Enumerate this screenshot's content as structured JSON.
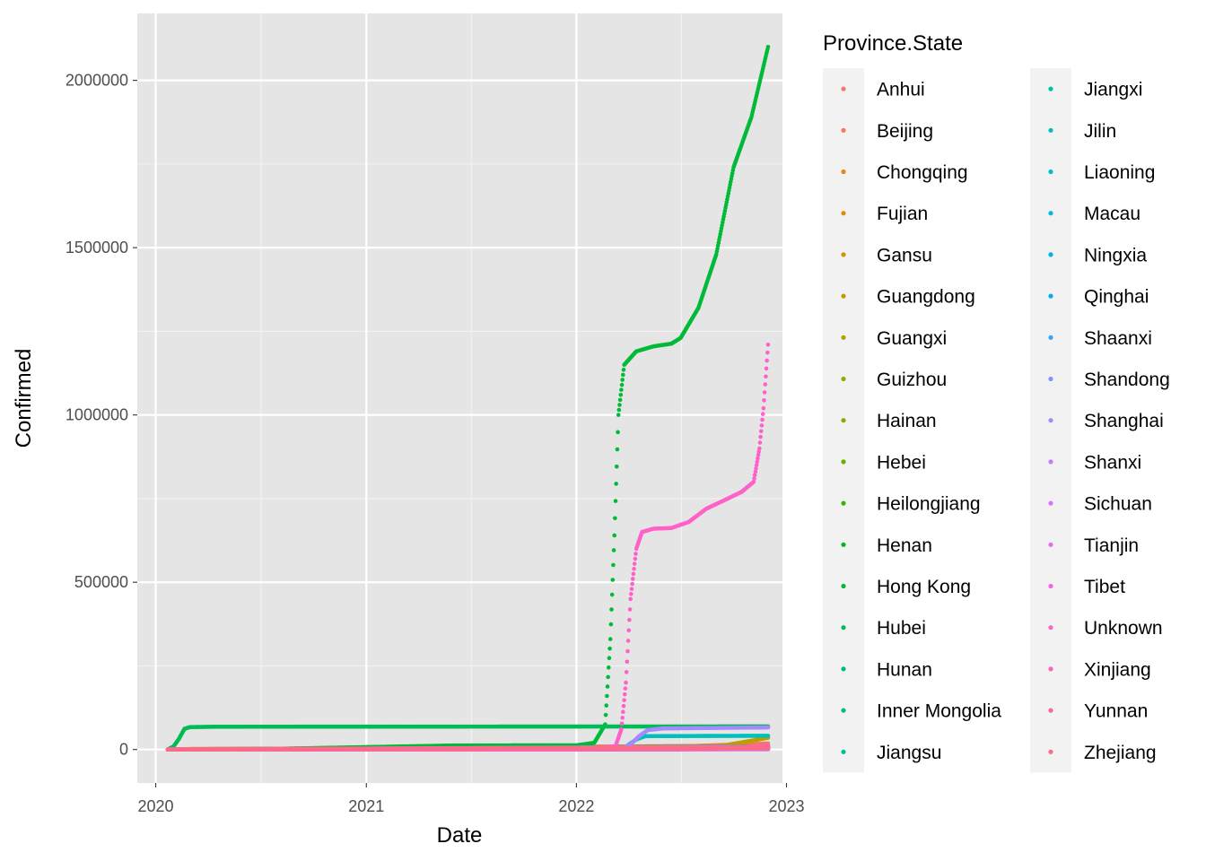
{
  "chart_data": {
    "type": "scatter",
    "xlabel": "Date",
    "ylabel": "Confirmed",
    "legend_title": "Province.State",
    "legend_position": "right",
    "grid": true,
    "panel_background": "#e5e5e5",
    "xlim": [
      "2019-11-30",
      "2022-12-25"
    ],
    "ylim": [
      -100000,
      2200000
    ],
    "x_ticks": [
      "2020-01-01",
      "2021-01-01",
      "2022-01-01",
      "2023-01-01"
    ],
    "x_tick_labels": [
      "2020",
      "2021",
      "2022",
      "2023"
    ],
    "y_ticks": [
      0,
      500000,
      1000000,
      1500000,
      2000000
    ],
    "y_tick_labels": [
      "0",
      "500000",
      "1000000",
      "1500000",
      "2000000"
    ],
    "series": [
      {
        "name": "Anhui",
        "color": "#F8766D",
        "x": [
          "2020-01-22",
          "2020-03-01",
          "2022-11-30"
        ],
        "y": [
          1,
          990,
          3000
        ]
      },
      {
        "name": "Beijing",
        "color": "#F17D51",
        "x": [
          "2020-01-22",
          "2020-06-15",
          "2022-03-01",
          "2022-11-30"
        ],
        "y": [
          14,
          800,
          2000,
          18000
        ]
      },
      {
        "name": "Chongqing",
        "color": "#E7851E",
        "x": [
          "2020-01-22",
          "2020-03-01",
          "2022-11-30"
        ],
        "y": [
          6,
          576,
          12000
        ]
      },
      {
        "name": "Fujian",
        "color": "#DB8E00",
        "x": [
          "2020-01-22",
          "2020-03-01",
          "2022-11-30"
        ],
        "y": [
          1,
          296,
          4000
        ]
      },
      {
        "name": "Gansu",
        "color": "#CF9400",
        "x": [
          "2020-01-22",
          "2020-03-01",
          "2022-11-30"
        ],
        "y": [
          0,
          91,
          1500
        ]
      },
      {
        "name": "Guangdong",
        "color": "#BF9C00",
        "x": [
          "2020-01-22",
          "2020-03-01",
          "2022-09-01",
          "2022-11-30"
        ],
        "y": [
          26,
          1350,
          8000,
          35000
        ]
      },
      {
        "name": "Guangxi",
        "color": "#AEA200",
        "x": [
          "2020-01-22",
          "2020-03-01",
          "2022-11-30"
        ],
        "y": [
          2,
          252,
          3000
        ]
      },
      {
        "name": "Guizhou",
        "color": "#9AA800",
        "x": [
          "2020-01-22",
          "2020-03-01",
          "2022-11-30"
        ],
        "y": [
          1,
          146,
          2000
        ]
      },
      {
        "name": "Hainan",
        "color": "#82AD00",
        "x": [
          "2020-01-22",
          "2020-03-01",
          "2022-11-30"
        ],
        "y": [
          4,
          168,
          9000
        ]
      },
      {
        "name": "Hebei",
        "color": "#64B200",
        "x": [
          "2020-01-22",
          "2021-02-01",
          "2022-11-30"
        ],
        "y": [
          1,
          1300,
          5000
        ]
      },
      {
        "name": "Heilongjiang",
        "color": "#39B600",
        "x": [
          "2020-01-22",
          "2020-03-01",
          "2022-11-30"
        ],
        "y": [
          0,
          480,
          3000
        ]
      },
      {
        "name": "Henan",
        "color": "#00B81B",
        "x": [
          "2020-01-22",
          "2020-03-01",
          "2022-11-30"
        ],
        "y": [
          5,
          1272,
          4000
        ]
      },
      {
        "name": "Hong Kong",
        "color": "#00BA38",
        "x": [
          "2020-01-22",
          "2020-07-01",
          "2021-06-01",
          "2022-01-01",
          "2022-02-01",
          "2022-02-20",
          "2022-03-01",
          "2022-03-08",
          "2022-03-15",
          "2022-03-25",
          "2022-04-15",
          "2022-05-15",
          "2022-06-15",
          "2022-07-01",
          "2022-08-01",
          "2022-09-01",
          "2022-10-01",
          "2022-11-01",
          "2022-11-30"
        ],
        "y": [
          0,
          1300,
          12000,
          12600,
          20000,
          75000,
          330000,
          640000,
          1000000,
          1150000,
          1190000,
          1205000,
          1213000,
          1230000,
          1320000,
          1480000,
          1740000,
          1890000,
          2100000
        ]
      },
      {
        "name": "Hubei",
        "color": "#00BC56",
        "x": [
          "2020-01-22",
          "2020-02-01",
          "2020-02-10",
          "2020-02-20",
          "2020-03-01",
          "2020-04-17",
          "2022-11-30"
        ],
        "y": [
          444,
          9000,
          31000,
          62000,
          67000,
          68128,
          69000
        ]
      },
      {
        "name": "Hunan",
        "color": "#00BD6E",
        "x": [
          "2020-01-22",
          "2020-03-01",
          "2022-11-30"
        ],
        "y": [
          4,
          1018,
          6000
        ]
      },
      {
        "name": "Inner Mongolia",
        "color": "#00BF84",
        "x": [
          "2020-01-22",
          "2020-04-01",
          "2022-11-30"
        ],
        "y": [
          0,
          200,
          9000
        ]
      },
      {
        "name": "Jiangsu",
        "color": "#00C098",
        "x": [
          "2020-01-22",
          "2021-08-01",
          "2022-11-30"
        ],
        "y": [
          1,
          1500,
          4000
        ]
      },
      {
        "name": "Jiangxi",
        "color": "#00C0AB",
        "x": [
          "2020-01-22",
          "2020-03-01",
          "2022-11-30"
        ],
        "y": [
          2,
          935,
          2500
        ]
      },
      {
        "name": "Jilin",
        "color": "#00BFBC",
        "x": [
          "2020-01-22",
          "2022-03-01",
          "2022-03-25",
          "2022-04-15",
          "2022-05-01",
          "2022-11-30"
        ],
        "y": [
          0,
          600,
          5000,
          30000,
          40000,
          41000
        ]
      },
      {
        "name": "Liaoning",
        "color": "#00BCCC",
        "x": [
          "2020-01-22",
          "2022-03-01",
          "2022-11-30"
        ],
        "y": [
          2,
          1000,
          3500
        ]
      },
      {
        "name": "Macau",
        "color": "#00B8DB",
        "x": [
          "2020-01-22",
          "2022-06-15",
          "2022-07-20",
          "2022-11-30"
        ],
        "y": [
          1,
          100,
          800,
          800
        ]
      },
      {
        "name": "Ningxia",
        "color": "#00B2E8",
        "x": [
          "2020-01-22",
          "2020-03-01",
          "2022-11-30"
        ],
        "y": [
          1,
          75,
          1500
        ]
      },
      {
        "name": "Qinghai",
        "color": "#00ABF3",
        "x": [
          "2020-01-22",
          "2020-03-01",
          "2022-11-30"
        ],
        "y": [
          0,
          18,
          3000
        ]
      },
      {
        "name": "Shaanxi",
        "color": "#35A2FC",
        "x": [
          "2020-01-22",
          "2021-12-25",
          "2022-01-15",
          "2022-11-30"
        ],
        "y": [
          0,
          500,
          2500,
          6000
        ]
      },
      {
        "name": "Shandong",
        "color": "#7C96FF",
        "x": [
          "2020-01-22",
          "2020-03-01",
          "2022-11-30"
        ],
        "y": [
          2,
          760,
          4000
        ]
      },
      {
        "name": "Shanghai",
        "color": "#A58AFF",
        "x": [
          "2020-01-22",
          "2022-03-20",
          "2022-04-05",
          "2022-04-20",
          "2022-05-05",
          "2022-06-01",
          "2022-11-30"
        ],
        "y": [
          9,
          2000,
          15000,
          40000,
          58000,
          63000,
          66000
        ]
      },
      {
        "name": "Shanxi",
        "color": "#C37DFF",
        "x": [
          "2020-01-22",
          "2020-03-01",
          "2022-11-30"
        ],
        "y": [
          1,
          133,
          2000
        ]
      },
      {
        "name": "Sichuan",
        "color": "#D973FC",
        "x": [
          "2020-01-22",
          "2020-03-01",
          "2022-11-30"
        ],
        "y": [
          5,
          539,
          8000
        ]
      },
      {
        "name": "Tianjin",
        "color": "#EA6AF1",
        "x": [
          "2020-01-22",
          "2022-01-15",
          "2022-11-30"
        ],
        "y": [
          4,
          500,
          3000
        ]
      },
      {
        "name": "Tibet",
        "color": "#F664E5",
        "x": [
          "2020-01-22",
          "2020-03-01",
          "2022-08-15",
          "2022-11-30"
        ],
        "y": [
          0,
          1,
          500,
          1500
        ]
      },
      {
        "name": "Unknown",
        "color": "#FF61C9",
        "x": [
          "2020-01-22",
          "2022-01-01",
          "2022-03-10",
          "2022-03-20",
          "2022-03-28",
          "2022-04-05",
          "2022-04-15",
          "2022-04-25",
          "2022-05-15",
          "2022-06-15",
          "2022-07-15",
          "2022-08-15",
          "2022-09-15",
          "2022-10-15",
          "2022-11-05",
          "2022-11-15",
          "2022-11-22",
          "2022-11-30"
        ],
        "y": [
          0,
          0,
          10000,
          60000,
          200000,
          450000,
          600000,
          650000,
          660000,
          662000,
          680000,
          720000,
          745000,
          770000,
          800000,
          900000,
          1020000,
          1210000
        ]
      },
      {
        "name": "Xinjiang",
        "color": "#FF63B6",
        "x": [
          "2020-01-22",
          "2020-08-01",
          "2022-08-15",
          "2022-11-30"
        ],
        "y": [
          0,
          900,
          1200,
          12000
        ]
      },
      {
        "name": "Yunnan",
        "color": "#FF669F",
        "x": [
          "2020-01-22",
          "2020-03-01",
          "2022-11-30"
        ],
        "y": [
          1,
          174,
          4000
        ]
      },
      {
        "name": "Zhejiang",
        "color": "#FC6B85",
        "x": [
          "2020-01-22",
          "2020-03-01",
          "2022-11-30"
        ],
        "y": [
          10,
          1215,
          6000
        ]
      }
    ]
  }
}
